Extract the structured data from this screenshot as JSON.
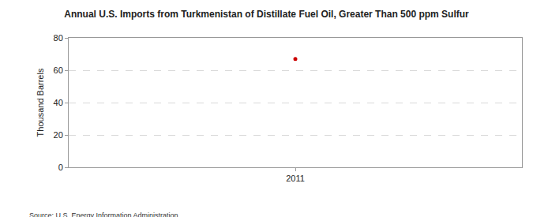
{
  "chart_data": {
    "type": "line",
    "title": "Annual U.S. Imports from Turkmenistan of Distillate Fuel Oil, Greater Than 500 ppm Sulfur",
    "y_label": "Thousand Barrels",
    "source": "Source: U.S. Energy Information Administration",
    "categories": [
      "2011"
    ],
    "values": [
      67
    ],
    "color": "#cc0000",
    "marker": "circle",
    "ylim": [
      0,
      80
    ],
    "yticks": [
      0,
      20,
      40,
      60,
      80
    ],
    "grid": true
  }
}
